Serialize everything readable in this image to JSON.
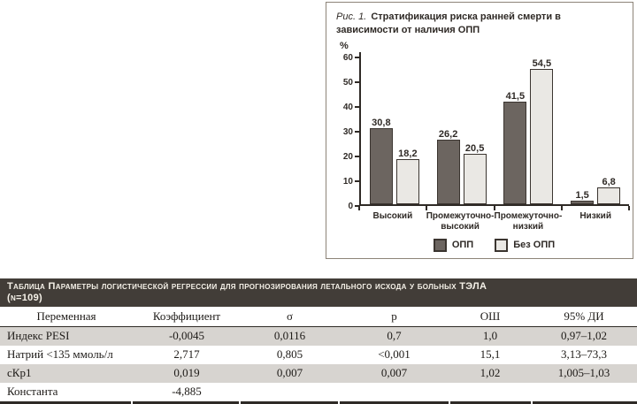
{
  "figure": {
    "label": "Рис. 1.",
    "title": "Стратификация риска ранней смерти в зависимости от наличия ОПП",
    "unit_label": "%"
  },
  "chart_data": {
    "type": "bar",
    "title": "Стратификация риска ранней смерти в зависимости от наличия ОПП",
    "categories": [
      "Высокий",
      "Промежуточно-\nвысокий",
      "Промежуточно-\nнизкий",
      "Низкий"
    ],
    "series": [
      {
        "name": "ОПП",
        "values": [
          30.8,
          26.2,
          41.5,
          1.5
        ],
        "labels": [
          "30,8",
          "26,2",
          "41,5",
          "1,5"
        ],
        "color": "#6c6560"
      },
      {
        "name": "Без ОПП",
        "values": [
          18.2,
          20.5,
          54.5,
          6.8
        ],
        "labels": [
          "18,2",
          "20,5",
          "54,5",
          "6,8"
        ],
        "color": "#eae8e4"
      }
    ],
    "xlabel": "",
    "ylabel": "%",
    "ylim": [
      0,
      60
    ],
    "yticks": [
      0,
      10,
      20,
      30,
      40,
      50,
      60
    ],
    "grid": false,
    "legend_position": "bottom"
  },
  "table": {
    "title": "Таблица Параметры логистической регрессии для прогнозирования летального исхода у больных ТЭЛА",
    "subtitle": "(N=109)",
    "columns": [
      "Переменная",
      "Коэффициент",
      "σ",
      "p",
      "ОШ",
      "95% ДИ"
    ],
    "rows": [
      [
        "Индекс PESI",
        "-0,0045",
        "0,0116",
        "0,7",
        "1,0",
        "0,97–1,02"
      ],
      [
        "Натрий <135 ммоль/л",
        "2,717",
        "0,805",
        "<0,001",
        "15,1",
        "3,13–73,3"
      ],
      [
        "сКр1",
        "0,019",
        "0,007",
        "0,007",
        "1,02",
        "1,005–1,03"
      ],
      [
        "Константа",
        "-4,885",
        "",
        "",
        "",
        ""
      ]
    ]
  },
  "colors": {
    "bar_dark": "#6c6560",
    "bar_light": "#eae8e4",
    "bar_border": "#3b3530",
    "axis": "#2f2a26",
    "figure_border": "#8d8478",
    "band_background": "#423d38",
    "band_text": "#f5f1e8",
    "row_alt": "#d7d4d0"
  }
}
